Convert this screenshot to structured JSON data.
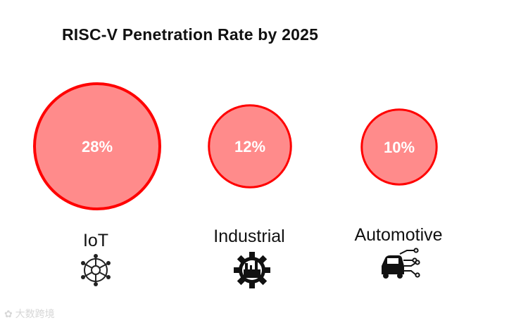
{
  "title": "RISC-V Penetration Rate by 2025",
  "chart_data": {
    "type": "bubble",
    "categories": [
      "IoT",
      "Industrial",
      "Automotive"
    ],
    "values": [
      28,
      12,
      10
    ],
    "value_labels": [
      "28%",
      "12%",
      "10%"
    ],
    "unit": "%",
    "colors": {
      "fill": "#ff8b8b",
      "stroke": "#ff0000"
    }
  },
  "icons": [
    "iot-network-icon",
    "industrial-gear-factory-icon",
    "automotive-car-circuit-icon"
  ],
  "watermark": "大数跨境"
}
